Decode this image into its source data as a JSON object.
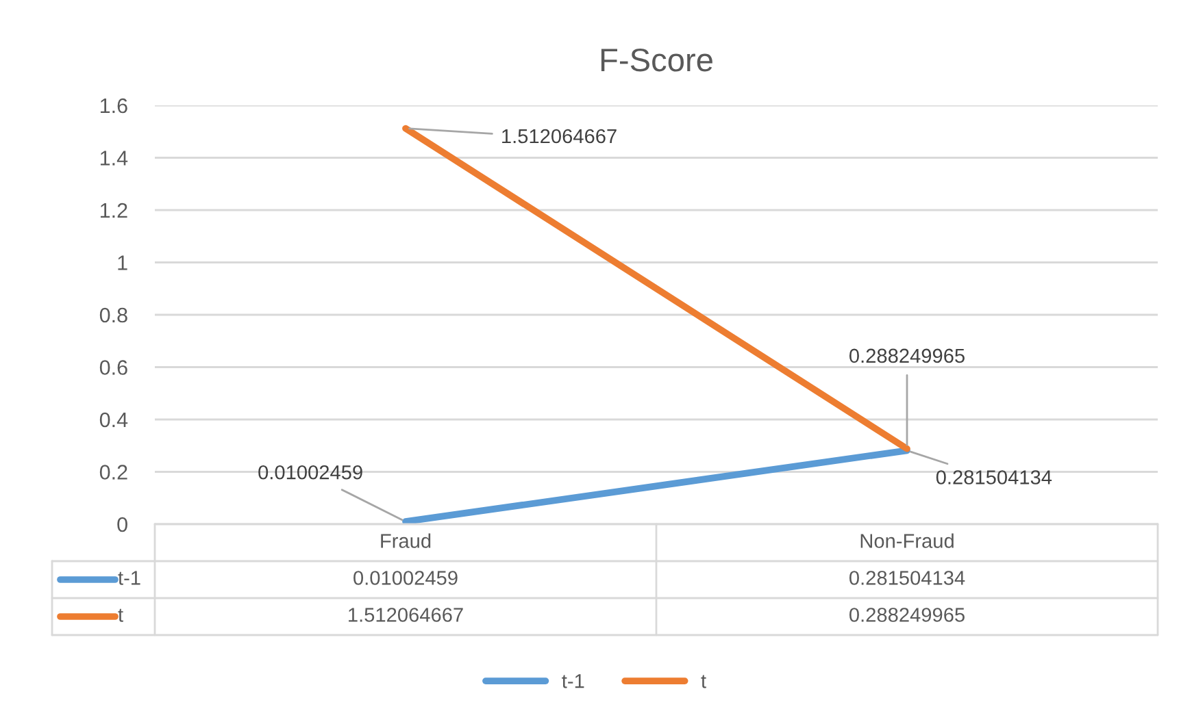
{
  "chart_data": {
    "type": "line",
    "title": "F-Score",
    "categories": [
      "Fraud",
      "Non-Fraud"
    ],
    "series": [
      {
        "name": "t-1",
        "color": "#5b9bd5",
        "values": [
          0.01002459,
          0.281504134
        ],
        "value_labels": [
          "0.01002459",
          "0.281504134"
        ]
      },
      {
        "name": "t",
        "color": "#ed7d31",
        "values": [
          1.512064667,
          0.288249965
        ],
        "value_labels": [
          "1.512064667",
          "0.288249965"
        ]
      }
    ],
    "ylim": [
      0,
      1.6
    ],
    "yticks": [
      0,
      0.2,
      0.4,
      0.6,
      0.8,
      1,
      1.2,
      1.4,
      1.6
    ],
    "grid": "y",
    "legend": "bottom",
    "marker": "none",
    "line_style": "solid"
  }
}
